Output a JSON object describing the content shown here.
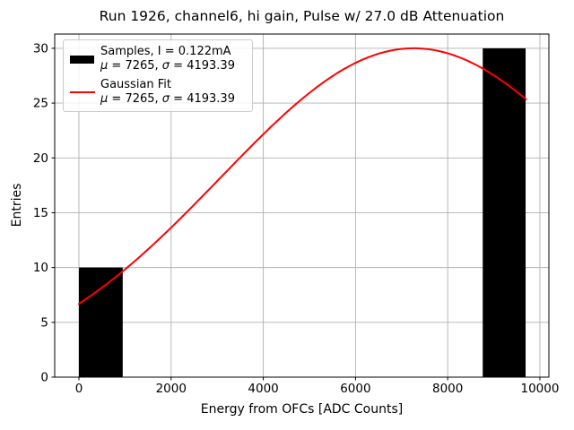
{
  "figure": {
    "title": "Run 1926, channel6, hi gain, Pulse w/ 27.0 dB Attenuation"
  },
  "chart_data": {
    "type": "bar",
    "subtype": "histogram-with-gaussian-fit",
    "title": "Run 1926, channel6, hi gain, Pulse w/ 27.0 dB Attenuation",
    "xlabel": "Energy from OFCs [ADC Counts]",
    "ylabel": "Entries",
    "xlim": [
      -525,
      10195
    ],
    "ylim": [
      0,
      31.3
    ],
    "xticks": [
      0,
      2000,
      4000,
      6000,
      8000,
      10000
    ],
    "yticks": [
      0,
      5,
      10,
      15,
      20,
      25,
      30
    ],
    "grid": true,
    "grid_color": "#b0b0b0",
    "bar_color": "#000000",
    "bars": [
      {
        "x0": 0,
        "x1": 950,
        "height": 10
      },
      {
        "x0": 8760,
        "x1": 9690,
        "height": 30
      }
    ],
    "gaussian_fit": {
      "amplitude": 30,
      "mu": 7265,
      "sigma": 4193.39,
      "x_start": 0,
      "x_end": 9700,
      "color": "#ff0000",
      "line_width": 2
    },
    "legend": {
      "position": "upper left",
      "entries": [
        {
          "swatch": "black-rect",
          "label": "Samples, I = 0.122mA",
          "stats": "μ = 7265, σ = 4193.39"
        },
        {
          "swatch": "red-line",
          "label": "Gaussian Fit",
          "stats": "μ = 7265, σ = 4193.39"
        }
      ]
    }
  }
}
